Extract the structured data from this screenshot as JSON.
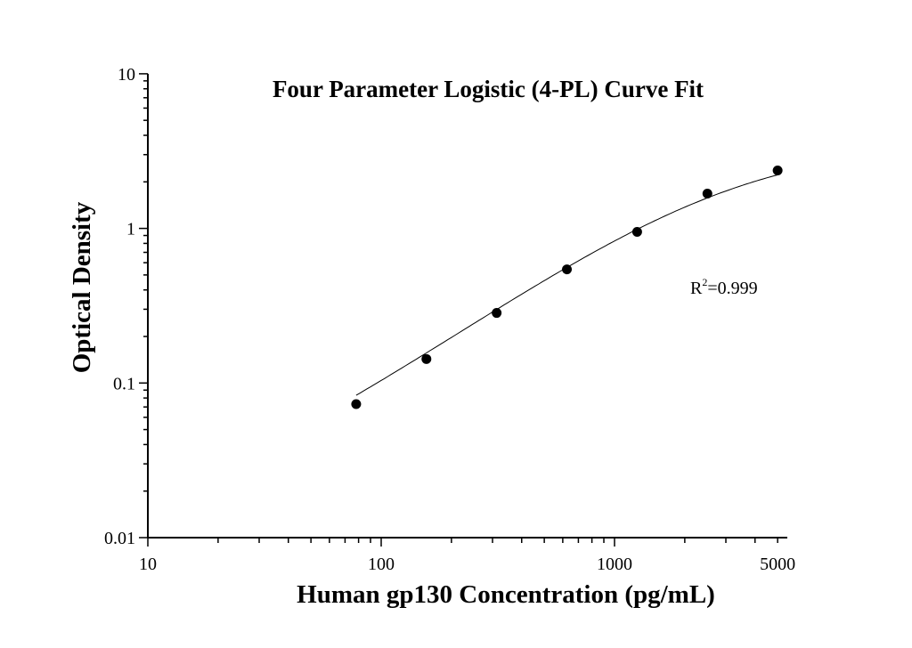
{
  "chart_data": {
    "type": "scatter",
    "title": "Four Parameter Logistic (4-PL) Curve Fit",
    "xlabel": "Human gp130 Concentration (pg/mL)",
    "ylabel": "Optical Density",
    "x_scale": "log",
    "y_scale": "log",
    "xlim": [
      10,
      5500
    ],
    "ylim": [
      0.01,
      10
    ],
    "x_ticks": [
      "10",
      "100",
      "1000",
      "5000"
    ],
    "y_ticks": [
      "0.01",
      "0.1",
      "1",
      "10"
    ],
    "grid": false,
    "annotation": {
      "base": "R",
      "sup": "2",
      "rest": "=0.999"
    },
    "x": [
      78.125,
      156.25,
      312.5,
      625,
      1250,
      2500,
      5000
    ],
    "values": [
      0.073,
      0.143,
      0.284,
      0.543,
      0.95,
      1.68,
      2.37
    ],
    "fit": "4-PL curve",
    "colors": {
      "points": "#000000",
      "curve": "#000000"
    }
  }
}
